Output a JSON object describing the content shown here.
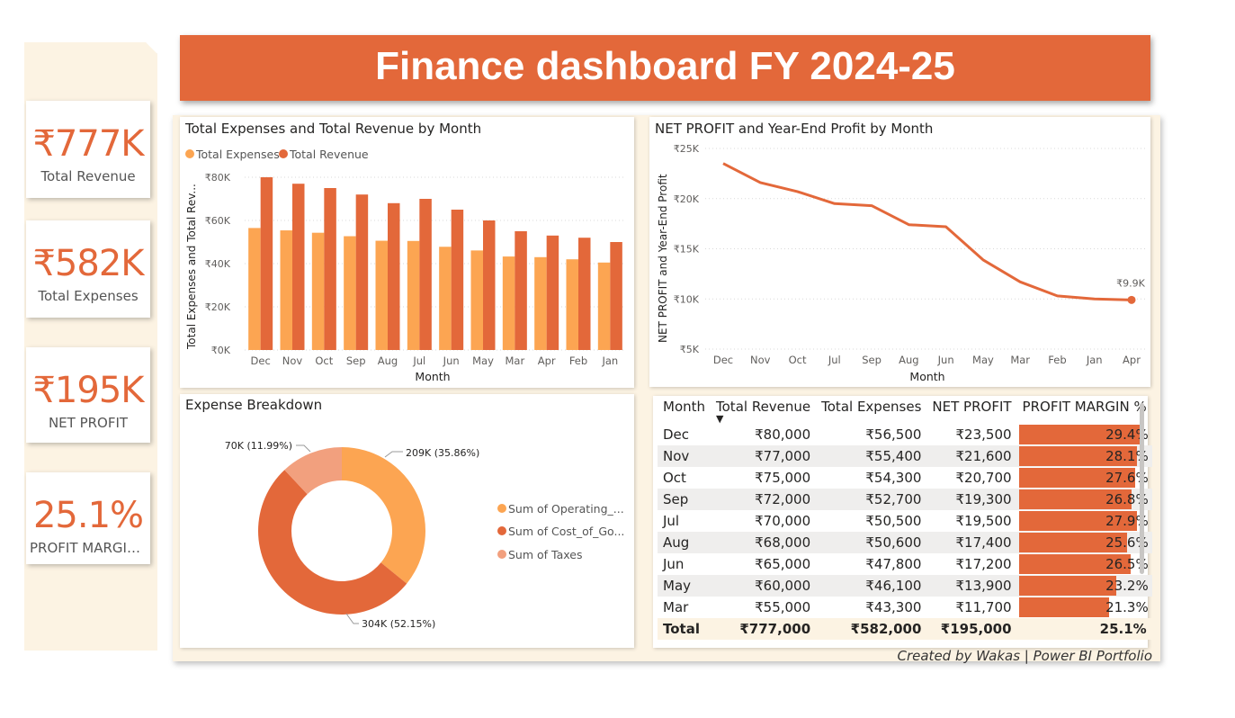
{
  "header": {
    "title": "Finance dashboard FY 2024-25"
  },
  "kpis": {
    "revenue": {
      "value": "₹777K",
      "label": "Total Revenue"
    },
    "expenses": {
      "value": "₹582K",
      "label": "Total Expenses"
    },
    "profit": {
      "value": "₹195K",
      "label": "NET PROFIT"
    },
    "margin": {
      "value": "25.1%",
      "label": "PROFIT MARGIN..."
    }
  },
  "bar_chart": {
    "title": "Total Expenses and Total Revenue by Month",
    "legend": [
      "Total Expenses",
      "Total Revenue"
    ],
    "ylabel": "Total Expenses and Total Rev...",
    "xlabel": "Month"
  },
  "line_chart": {
    "title": "NET PROFIT and Year-End Profit by Month",
    "ylabel": "NET PROFIT and Year-End Profit",
    "xlabel": "Month",
    "end_label": "₹9.9K"
  },
  "donut": {
    "title": "Expense Breakdown",
    "legend": [
      "Sum of Operating_...",
      "Sum of Cost_of_Go...",
      "Sum of Taxes"
    ],
    "labels": [
      "209K (35.86%)",
      "304K (52.15%)",
      "70K (11.99%)"
    ]
  },
  "table": {
    "headers": [
      "Month",
      "Total Revenue",
      "Total Expenses",
      "NET PROFIT",
      "PROFIT MARGIN %"
    ],
    "rows": [
      [
        "Dec",
        "₹80,000",
        "₹56,500",
        "₹23,500",
        "29.4%"
      ],
      [
        "Nov",
        "₹77,000",
        "₹55,400",
        "₹21,600",
        "28.1%"
      ],
      [
        "Oct",
        "₹75,000",
        "₹54,300",
        "₹20,700",
        "27.6%"
      ],
      [
        "Sep",
        "₹72,000",
        "₹52,700",
        "₹19,300",
        "26.8%"
      ],
      [
        "Jul",
        "₹70,000",
        "₹50,500",
        "₹19,500",
        "27.9%"
      ],
      [
        "Aug",
        "₹68,000",
        "₹50,600",
        "₹17,400",
        "25.6%"
      ],
      [
        "Jun",
        "₹65,000",
        "₹47,800",
        "₹17,200",
        "26.5%"
      ],
      [
        "May",
        "₹60,000",
        "₹46,100",
        "₹13,900",
        "23.2%"
      ],
      [
        "Mar",
        "₹55,000",
        "₹43,300",
        "₹11,700",
        "21.3%"
      ]
    ],
    "margins": [
      29.4,
      28.1,
      27.6,
      26.8,
      27.9,
      25.6,
      26.5,
      23.2,
      21.3
    ],
    "total": [
      "Total",
      "₹777,000",
      "₹582,000",
      "₹195,000",
      "25.1%"
    ]
  },
  "credit": "Created by Wakas | Power BI Portfolio",
  "colors": {
    "accent": "#e3683a",
    "light": "#fca552",
    "taxes": "#f2a07e",
    "cream": "#fcf3e3"
  },
  "chart_data": [
    {
      "type": "bar",
      "title": "Total Expenses and Total Revenue by Month",
      "xlabel": "Month",
      "ylabel": "Total Expenses and Total Rev...",
      "categories": [
        "Dec",
        "Nov",
        "Oct",
        "Sep",
        "Aug",
        "Jul",
        "Jun",
        "May",
        "Mar",
        "Apr",
        "Feb",
        "Jan"
      ],
      "series": [
        {
          "name": "Total Expenses",
          "values": [
            56500,
            55400,
            54300,
            52700,
            50600,
            50500,
            47800,
            46100,
            43300,
            43000,
            42000,
            40500
          ]
        },
        {
          "name": "Total Revenue",
          "values": [
            80000,
            77000,
            75000,
            72000,
            68000,
            70000,
            65000,
            60000,
            55000,
            53000,
            52000,
            50000
          ]
        }
      ],
      "yticks": [
        "₹0K",
        "₹20K",
        "₹40K",
        "₹60K",
        "₹80K"
      ],
      "ylim": [
        0,
        80000
      ],
      "grid": true,
      "legend_position": "top-left"
    },
    {
      "type": "line",
      "title": "NET PROFIT and Year-End Profit by Month",
      "xlabel": "Month",
      "ylabel": "NET PROFIT and Year-End Profit",
      "categories": [
        "Dec",
        "Nov",
        "Oct",
        "Jul",
        "Sep",
        "Aug",
        "Jun",
        "May",
        "Mar",
        "Feb",
        "Jan",
        "Apr"
      ],
      "values": [
        23500,
        21600,
        20700,
        19500,
        19300,
        17400,
        17200,
        13900,
        11700,
        10300,
        10000,
        9900
      ],
      "yticks": [
        "₹5K",
        "₹10K",
        "₹15K",
        "₹20K",
        "₹25K"
      ],
      "ylim": [
        5000,
        25000
      ],
      "grid": true
    },
    {
      "type": "pie",
      "title": "Expense Breakdown",
      "categories": [
        "Sum of Operating_...",
        "Sum of Cost_of_Go...",
        "Sum of Taxes"
      ],
      "values": [
        209,
        304,
        70
      ],
      "percents": [
        35.86,
        52.15,
        11.99
      ]
    }
  ]
}
